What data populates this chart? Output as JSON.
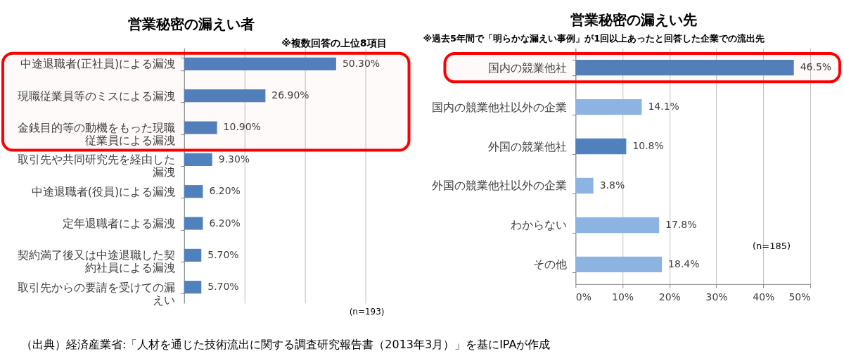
{
  "chart_data": [
    {
      "type": "bar",
      "orientation": "horizontal",
      "title": "営業秘密の漏えい者",
      "categories": [
        "中途退職者(正社員)による漏洩",
        "現職従業員等のミスによる漏洩",
        "金銭目的等の動機をもった現職従業員による漏洩",
        "取引先や共同研究先を経由した漏洩",
        "中途退職者(役員)による漏洩",
        "定年退職者による漏洩",
        "契約満了後又は中途退職した契約社員による漏洩",
        "取引先からの要請を受けての漏えい"
      ],
      "values": [
        50.3,
        26.9,
        10.9,
        9.3,
        6.2,
        6.2,
        5.7,
        5.7
      ],
      "value_labels": [
        "50.30%",
        "26.90%",
        "10.90%",
        "9.30%",
        "6.20%",
        "6.20%",
        "5.70%",
        "5.70%"
      ],
      "color": "#4f81bd",
      "xlim": [
        0,
        60
      ],
      "xticks": [
        {
          "value": 0,
          "label": null
        },
        {
          "value": 20,
          "label": null
        },
        {
          "value": 40,
          "label": null
        },
        {
          "value": 60,
          "label": null
        }
      ],
      "tick_labels": "y",
      "grid": "x",
      "bands": [
        {
          "axis": "y",
          "from": "中途退職者(正社員)による漏洩",
          "to": "金銭目的等の動機をもった現職従業員による漏洩",
          "color": "#ff0000"
        }
      ],
      "annotations": [
        "※複数回答の上位8項目",
        "(n=193)",
        "（出典）経済産業省:「人材を通じた技術流出に関する調査研究報告書（2013年3月）」を基にIPAが作成"
      ]
    },
    {
      "type": "bar",
      "orientation": "horizontal",
      "title": "営業秘密の漏えい先",
      "categories": [
        "国内の競業他社",
        "国内の競業他社以外の企業",
        "外国の競業他社",
        "外国の競業他社以外の企業",
        "わからない",
        "その他"
      ],
      "values": [
        46.5,
        14.1,
        10.8,
        3.8,
        17.8,
        18.4
      ],
      "value_labels": [
        "46.5%",
        "14.1%",
        "10.8%",
        "3.8%",
        "17.8%",
        "18.4%"
      ],
      "colors": [
        "#4f81bd",
        "#8db3e2",
        "#4f81bd",
        "#8db3e2",
        "#8db3e2",
        "#8db3e2"
      ],
      "xlim": [
        0,
        50
      ],
      "xticks": [
        {
          "value": 0,
          "label": "0%"
        },
        {
          "value": 10,
          "label": "10%"
        },
        {
          "value": 20,
          "label": "20%"
        },
        {
          "value": 30,
          "label": "30%"
        },
        {
          "value": 40,
          "label": "40%"
        },
        {
          "value": 50,
          "label": "50%"
        }
      ],
      "grid": "x",
      "bands": [
        {
          "axis": "y",
          "from": "国内の競業他社",
          "to": "国内の競業他社",
          "color": "#ff0000"
        }
      ],
      "annotations": [
        "※過去5年間で「明らかな漏えい事例」が1回以上あったと回答した企業での流出先",
        "(n=185)"
      ]
    }
  ]
}
